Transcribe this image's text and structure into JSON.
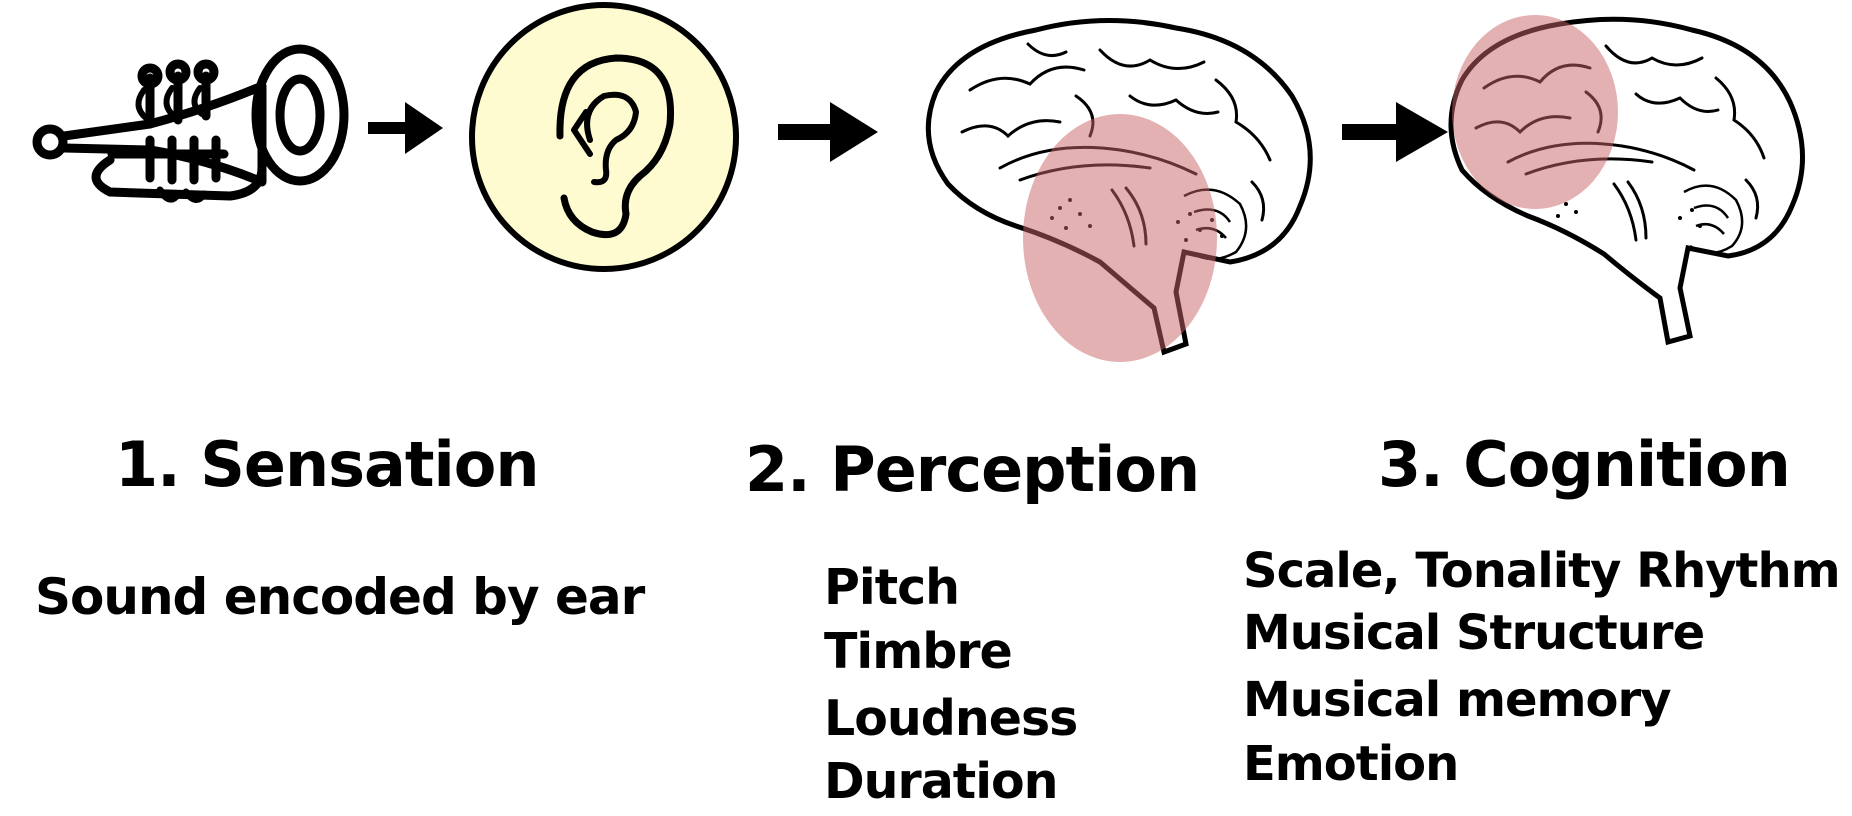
{
  "stages": [
    {
      "title": "1. Sensation",
      "description": "Sound encoded by ear"
    },
    {
      "title": "2. Perception",
      "items": [
        "Pitch",
        "Timbre",
        "Loudness",
        "Duration"
      ]
    },
    {
      "title": "3. Cognition",
      "items": [
        "Scale, Tonality Rhythm",
        "Musical Structure",
        "Musical memory",
        "Emotion"
      ]
    }
  ],
  "icons": {
    "source": "trumpet-icon",
    "receptor": "ear-icon",
    "perception_brain": "brain-icon",
    "cognition_brain": "brain-icon"
  },
  "colors": {
    "ear_circle_fill": "#fdfbcf",
    "highlight_region": "#c76466",
    "ink": "#000000"
  }
}
